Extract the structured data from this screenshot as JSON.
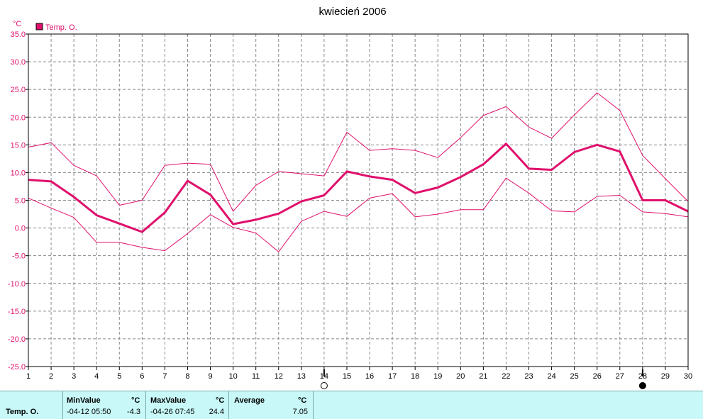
{
  "chart_data": {
    "type": "line",
    "title": "kwiecień 2006",
    "y_unit": "°C",
    "ylim": [
      -25,
      35
    ],
    "yticks": [
      "35.0",
      "30.0",
      "25.0",
      "20.0",
      "15.0",
      "10.0",
      "5.0",
      "0.0",
      "-5.0",
      "-10.0",
      "-15.0",
      "-20.0",
      "-25.0"
    ],
    "xlim": [
      1,
      30
    ],
    "x": [
      1,
      2,
      3,
      4,
      5,
      6,
      7,
      8,
      9,
      10,
      11,
      12,
      13,
      14,
      15,
      16,
      17,
      18,
      19,
      20,
      21,
      22,
      23,
      24,
      25,
      26,
      27,
      28,
      29,
      30
    ],
    "grid": true,
    "legend": "top-left",
    "series": [
      {
        "name": "Temp. O.",
        "role": "average",
        "color": "#e0106c",
        "values": [
          8.7,
          8.4,
          5.6,
          2.3,
          0.8,
          -0.7,
          2.8,
          8.5,
          6.0,
          0.7,
          1.5,
          2.6,
          4.8,
          5.9,
          10.2,
          9.3,
          8.7,
          6.3,
          7.3,
          9.2,
          11.5,
          15.2,
          10.7,
          10.5,
          13.7,
          15.0,
          13.8,
          5.0,
          5.0,
          3.0
        ]
      },
      {
        "role": "max",
        "color": "#e0106c",
        "values": [
          14.6,
          15.4,
          11.3,
          9.4,
          4.1,
          5.0,
          11.3,
          11.7,
          11.5,
          3.0,
          7.7,
          10.2,
          9.8,
          9.4,
          17.3,
          14.0,
          14.3,
          14.0,
          12.7,
          16.3,
          20.3,
          21.9,
          18.2,
          16.2,
          20.4,
          24.4,
          21.2,
          13.1,
          8.9,
          4.8
        ]
      },
      {
        "role": "min",
        "color": "#e0106c",
        "values": [
          5.4,
          3.6,
          1.9,
          -2.6,
          -2.6,
          -3.5,
          -4.1,
          -1.0,
          2.4,
          0.1,
          -0.9,
          -4.3,
          1.2,
          3.0,
          2.1,
          5.4,
          6.2,
          2.0,
          2.5,
          3.3,
          3.3,
          9.0,
          6.3,
          3.1,
          2.9,
          5.7,
          5.9,
          2.9,
          2.6,
          2.0
        ]
      }
    ],
    "markers": [
      {
        "x": 14,
        "symbol": "open-circle"
      },
      {
        "x": 28,
        "symbol": "filled-circle"
      }
    ]
  },
  "stats": {
    "series_label": "Temp. O.",
    "min": {
      "label": "MinValue",
      "unit": "°C",
      "time": "-04-12  05:50",
      "value": "-4.3"
    },
    "max": {
      "label": "MaxValue",
      "unit": "°C",
      "time": "-04-26  07:45",
      "value": "24.4"
    },
    "avg": {
      "label": "Average",
      "unit": "°C",
      "value": "7.05"
    }
  }
}
